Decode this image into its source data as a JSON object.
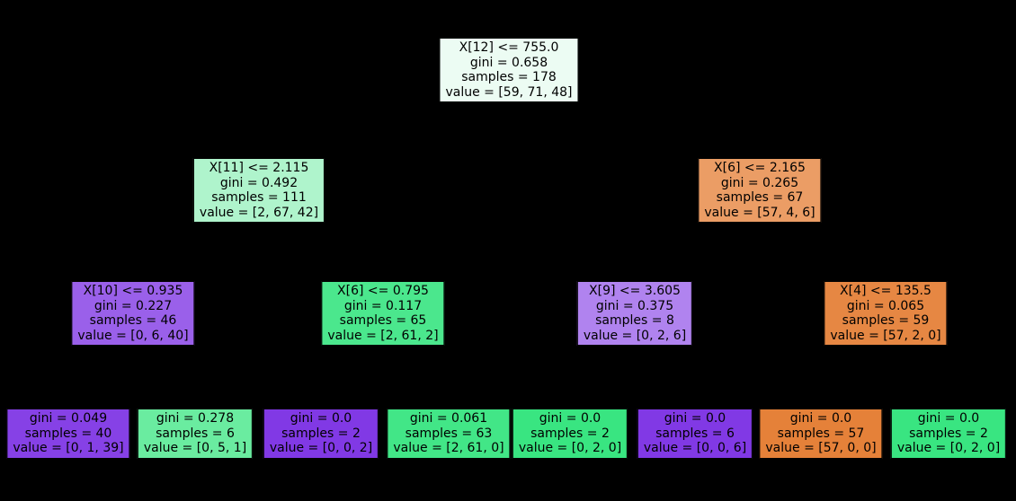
{
  "figure": {
    "background": "#000000",
    "node_text_color": "#000000",
    "class_colors": {
      "class_0": "#e58139",
      "class_1": "#39e581",
      "class_2": "#8139e5"
    }
  },
  "tree": {
    "nodes": [
      {
        "role": "root",
        "color": "#ecfcf3",
        "lines": [
          "X[12] <= 755.0",
          "gini = 0.658",
          "samples = 178",
          "value = [59, 71, 48]"
        ]
      },
      {
        "role": "internal-l",
        "color": "#aff4cc",
        "lines": [
          "X[11] <= 2.115",
          "gini = 0.492",
          "samples = 111",
          "value = [2, 67, 42]"
        ]
      },
      {
        "role": "internal-r",
        "color": "#eb9d65",
        "lines": [
          "X[6] <= 2.165",
          "gini = 0.265",
          "samples = 67",
          "value = [57, 4, 6]"
        ]
      },
      {
        "role": "internal-ll",
        "color": "#9a60ea",
        "lines": [
          "X[10] <= 0.935",
          "gini = 0.227",
          "samples = 46",
          "value = [0, 6, 40]"
        ]
      },
      {
        "role": "internal-lr",
        "color": "#4be78d",
        "lines": [
          "X[6] <= 0.795",
          "gini = 0.117",
          "samples = 65",
          "value = [2, 61, 2]"
        ]
      },
      {
        "role": "internal-rl",
        "color": "#b083ef",
        "lines": [
          "X[9] <= 3.605",
          "gini = 0.375",
          "samples = 8",
          "value = [0, 2, 6]"
        ]
      },
      {
        "role": "internal-rr",
        "color": "#e68743",
        "lines": [
          "X[4] <= 135.5",
          "gini = 0.065",
          "samples = 59",
          "value = [57, 2, 0]"
        ]
      },
      {
        "role": "leaf-1",
        "color": "#8641e6",
        "lines": [
          "gini = 0.049",
          "samples = 40",
          "value = [0, 1, 39]"
        ]
      },
      {
        "role": "leaf-2",
        "color": "#6aeca0",
        "lines": [
          "gini = 0.278",
          "samples = 6",
          "value = [0, 5, 1]"
        ]
      },
      {
        "role": "leaf-3",
        "color": "#8139e5",
        "lines": [
          "gini = 0.0",
          "samples = 2",
          "value = [0, 0, 2]"
        ]
      },
      {
        "role": "leaf-4",
        "color": "#42e687",
        "lines": [
          "gini = 0.061",
          "samples = 63",
          "value = [2, 61, 0]"
        ]
      },
      {
        "role": "leaf-5",
        "color": "#39e581",
        "lines": [
          "gini = 0.0",
          "samples = 2",
          "value = [0, 2, 0]"
        ]
      },
      {
        "role": "leaf-6",
        "color": "#8139e5",
        "lines": [
          "gini = 0.0",
          "samples = 6",
          "value = [0, 0, 6]"
        ]
      },
      {
        "role": "leaf-7",
        "color": "#e58139",
        "lines": [
          "gini = 0.0",
          "samples = 57",
          "value = [57, 0, 0]"
        ]
      },
      {
        "role": "leaf-8",
        "color": "#39e581",
        "lines": [
          "gini = 0.0",
          "samples = 2",
          "value = [0, 2, 0]"
        ]
      }
    ]
  }
}
